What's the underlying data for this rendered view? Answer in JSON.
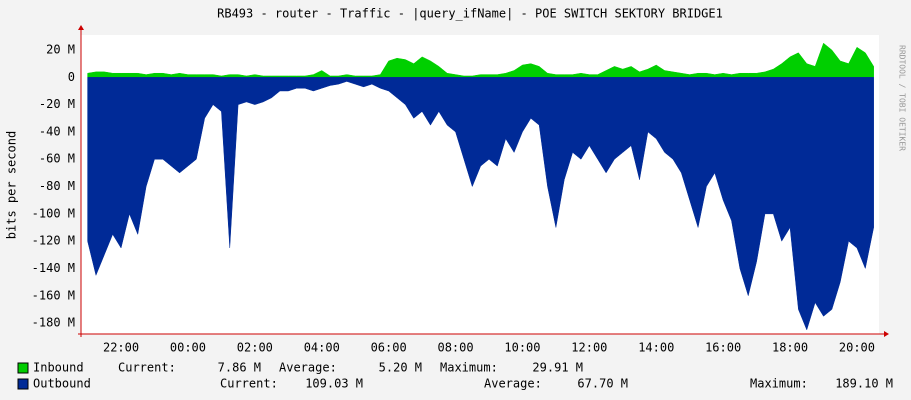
{
  "chart_data": {
    "type": "area",
    "title": "RB493 - router - Traffic - |query_ifName| - POE SWITCH SEKTORY BRIDGE1",
    "y_label": "bits per second",
    "watermark": "RRDTOOL / TOBI OETIKER",
    "categories": [
      null,
      null,
      null,
      null,
      "22:00",
      null,
      null,
      null,
      null,
      null,
      null,
      null,
      "00:00",
      null,
      null,
      null,
      null,
      null,
      null,
      null,
      "02:00",
      null,
      null,
      null,
      null,
      null,
      null,
      null,
      "04:00",
      null,
      null,
      null,
      null,
      null,
      null,
      null,
      "06:00",
      null,
      null,
      null,
      null,
      null,
      null,
      null,
      "08:00",
      null,
      null,
      null,
      null,
      null,
      null,
      null,
      "10:00",
      null,
      null,
      null,
      null,
      null,
      null,
      null,
      "12:00",
      null,
      null,
      null,
      null,
      null,
      null,
      null,
      "14:00",
      null,
      null,
      null,
      null,
      null,
      null,
      null,
      "16:00",
      null,
      null,
      null,
      null,
      null,
      null,
      null,
      "18:00",
      null,
      null,
      null,
      null,
      null,
      null,
      null,
      "20:00",
      null,
      null
    ],
    "ylim": [
      -188,
      31
    ],
    "yticks": [
      {
        "value": 20,
        "label": "20 M"
      },
      0,
      {
        "value": -20,
        "label": "-20 M"
      },
      {
        "value": -40,
        "label": "-40 M"
      },
      {
        "value": -60,
        "label": "-60 M"
      },
      {
        "value": -80,
        "label": "-80 M"
      },
      {
        "value": -100,
        "label": "-100 M"
      },
      {
        "value": -120,
        "label": "-120 M"
      },
      {
        "value": -140,
        "label": "-140 M"
      },
      {
        "value": -160,
        "label": "-160 M"
      },
      {
        "value": -180,
        "label": "-180 M"
      }
    ],
    "grid": true,
    "series": [
      {
        "name": "Inbound",
        "color": "#00cf00",
        "legend_color": "#00cc00",
        "values": [
          3,
          4,
          4,
          3,
          3,
          3,
          3,
          2,
          3,
          3,
          2,
          3,
          2,
          2,
          2,
          2,
          1,
          2,
          2,
          1,
          2,
          1,
          1,
          1,
          1,
          1,
          1,
          2,
          5,
          1,
          1,
          2,
          1,
          1,
          1,
          2,
          12,
          14,
          13,
          10,
          15,
          12,
          8,
          3,
          2,
          1,
          1,
          2,
          2,
          2,
          3,
          5,
          9,
          10,
          8,
          3,
          2,
          2,
          2,
          3,
          2,
          2,
          5,
          8,
          6,
          8,
          4,
          6,
          9,
          5,
          4,
          3,
          2,
          3,
          3,
          2,
          3,
          2,
          3,
          3,
          3,
          4,
          6,
          10,
          15,
          18,
          10,
          8,
          25,
          20,
          12,
          10,
          22,
          18,
          8
        ],
        "stats": [
          {
            "label": "Current:",
            "value": "7.86 M"
          },
          {
            "label": "Average:",
            "value": "5.20 M"
          },
          {
            "label": "Maximum:",
            "value": "29.91 M"
          }
        ]
      },
      {
        "name": "Outbound",
        "color": "#002a97",
        "legend_color": "#002a97",
        "values": [
          -120,
          -145,
          -130,
          -115,
          -125,
          -100,
          -115,
          -80,
          -60,
          -60,
          -65,
          -70,
          -65,
          -60,
          -30,
          -20,
          -25,
          -125,
          -20,
          -18,
          -20,
          -18,
          -15,
          -10,
          -10,
          -8,
          -8,
          -10,
          -8,
          -6,
          -5,
          -3,
          -5,
          -7,
          -5,
          -8,
          -10,
          -15,
          -20,
          -30,
          -25,
          -35,
          -25,
          -35,
          -40,
          -60,
          -80,
          -65,
          -60,
          -65,
          -45,
          -55,
          -40,
          -30,
          -35,
          -80,
          -110,
          -75,
          -55,
          -60,
          -50,
          -60,
          -70,
          -60,
          -55,
          -50,
          -75,
          -40,
          -45,
          -55,
          -60,
          -70,
          -90,
          -110,
          -80,
          -70,
          -90,
          -105,
          -140,
          -160,
          -135,
          -100,
          -100,
          -120,
          -110,
          -170,
          -185,
          -165,
          -175,
          -170,
          -150,
          -120,
          -125,
          -140,
          -110
        ],
        "stats": [
          {
            "label": "Current:",
            "value": "109.03 M"
          },
          {
            "label": "Average:",
            "value": "67.70 M"
          },
          {
            "label": "Maximum:",
            "value": "189.10 M"
          }
        ]
      }
    ]
  }
}
